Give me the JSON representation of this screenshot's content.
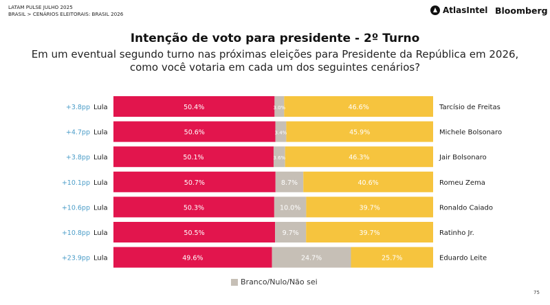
{
  "header": {
    "line1": "LATAM PULSE JULHO 2025",
    "line2": "BRASIL > CENÁRIOS ELEITORAIS: BRASIL 2026",
    "brand_atlas": "AtlasIntel",
    "brand_bloomberg": "Bloomberg"
  },
  "colors": {
    "lula": "#e2154d",
    "other": "#f6c43e",
    "blank": "#c6bfb6",
    "diff": "#4a9cc8"
  },
  "chart_data": {
    "type": "bar",
    "stacked": true,
    "orientation": "horizontal",
    "title": "Intenção de voto para presidente - 2º Turno",
    "subtitle_lines": [
      "Em um eventual segundo turno nas próximas eleições para Presidente da República em 2026,",
      "como você votaria em cada um dos seguintes cenários?"
    ],
    "legend": [
      {
        "label": "Branco/Nulo/Não sei",
        "color": "#c6bfb6"
      }
    ],
    "legend_position": "bottom",
    "rows": [
      {
        "diff": "+3.8pp",
        "left": "Lula",
        "right": "Tarcísio de Freitas",
        "lula": 50.4,
        "blank": 3.0,
        "other": 46.6,
        "lula_label": "50.4%",
        "blank_label": "3.0%",
        "other_label": "46.6%"
      },
      {
        "diff": "+4.7pp",
        "left": "Lula",
        "right": "Michele Bolsonaro",
        "lula": 50.6,
        "blank": 3.4,
        "other": 45.9,
        "lula_label": "50.6%",
        "blank_label": "3.4%",
        "other_label": "45.9%"
      },
      {
        "diff": "+3.8pp",
        "left": "Lula",
        "right": "Jair Bolsonaro",
        "lula": 50.1,
        "blank": 3.6,
        "other": 46.3,
        "lula_label": "50.1%",
        "blank_label": "3.6%",
        "other_label": "46.3%"
      },
      {
        "diff": "+10.1pp",
        "left": "Lula",
        "right": "Romeu Zema",
        "lula": 50.7,
        "blank": 8.7,
        "other": 40.6,
        "lula_label": "50.7%",
        "blank_label": "8.7%",
        "other_label": "40.6%"
      },
      {
        "diff": "+10.6pp",
        "left": "Lula",
        "right": "Ronaldo Caiado",
        "lula": 50.3,
        "blank": 10.0,
        "other": 39.7,
        "lula_label": "50.3%",
        "blank_label": "10.0%",
        "other_label": "39.7%"
      },
      {
        "diff": "+10.8pp",
        "left": "Lula",
        "right": "Ratinho Jr.",
        "lula": 50.5,
        "blank": 9.7,
        "other": 39.7,
        "lula_label": "50.5%",
        "blank_label": "9.7%",
        "other_label": "39.7%"
      },
      {
        "diff": "+23.9pp",
        "left": "Lula",
        "right": "Eduardo Leite",
        "lula": 49.6,
        "blank": 24.7,
        "other": 25.7,
        "lula_label": "49.6%",
        "blank_label": "24.7%",
        "other_label": "25.7%"
      }
    ]
  },
  "page_number": "75"
}
